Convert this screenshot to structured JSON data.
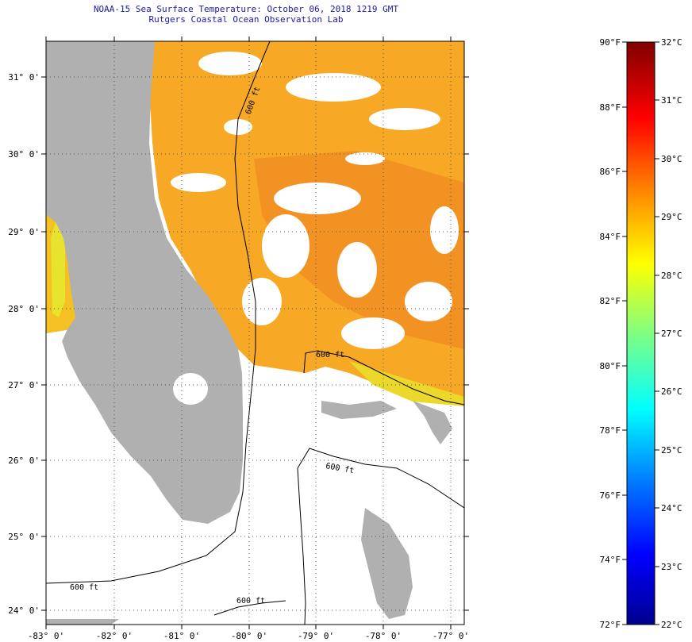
{
  "header": {
    "title": "NOAA-15 Sea Surface Temperature:  October 06, 2018 1219 GMT",
    "subtitle": "Rutgers Coastal Ocean Observation Lab"
  },
  "map": {
    "lat_labels": [
      "31° 0'",
      "30° 0'",
      "29° 0'",
      "28° 0'",
      "27° 0'",
      "26° 0'",
      "25° 0'",
      "24° 0'"
    ],
    "lon_labels": [
      "-83° 0'",
      "-82° 0'",
      "-81° 0'",
      "-80° 0'",
      "-79° 0'",
      "-78° 0'",
      "-77° 0'"
    ],
    "contour_labels": [
      "600 ft",
      "600 ft",
      "600 ft",
      "600 ft",
      "600 ft"
    ],
    "colors": {
      "land": "#b0b0b0",
      "no_data": "#ffffff",
      "sst_warm": "#f59a1e",
      "sst_mid": "#fbbf22",
      "sst_cool": "#e8e22a"
    }
  },
  "colorbar": {
    "f_labels": [
      "90°F",
      "88°F",
      "86°F",
      "84°F",
      "82°F",
      "80°F",
      "78°F",
      "76°F",
      "74°F",
      "72°F"
    ],
    "c_labels": [
      "32°C",
      "31°C",
      "30°C",
      "29°C",
      "28°C",
      "27°C",
      "26°C",
      "25°C",
      "24°C",
      "23°C",
      "22°C"
    ],
    "colors": [
      "#00008f",
      "#0000ff",
      "#0080ff",
      "#00ffff",
      "#80ff80",
      "#ffff00",
      "#ff8000",
      "#ff0000",
      "#800000"
    ]
  }
}
